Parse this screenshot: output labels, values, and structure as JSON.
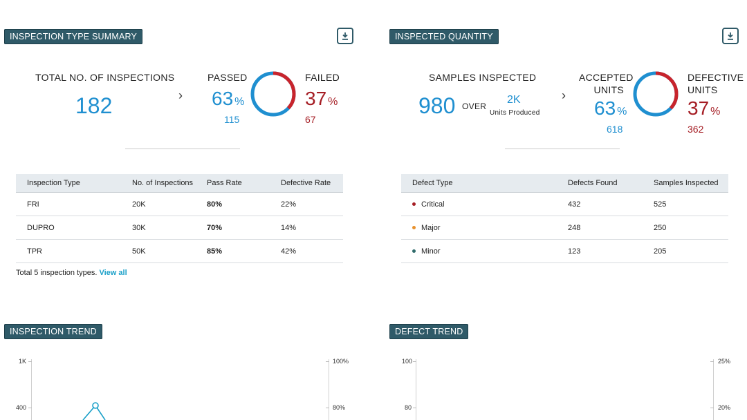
{
  "inspection_summary": {
    "title": "INSPECTION TYPE SUMMARY",
    "total_label": "TOTAL NO. OF INSPECTIONS",
    "total_value": "182",
    "passed_label": "PASSED",
    "passed_pct": "63",
    "passed_count": "115",
    "failed_label": "FAILED",
    "failed_pct": "37",
    "failed_count": "67",
    "pass_fraction": 0.63,
    "table": {
      "headers": [
        "Inspection Type",
        "No. of Inspections",
        "Pass Rate",
        "Defective Rate"
      ],
      "rows": [
        {
          "type": "FRI",
          "count": "20K",
          "pass": "80%",
          "defect": "22%"
        },
        {
          "type": "DUPRO",
          "count": "30K",
          "pass": "70%",
          "defect": "14%"
        },
        {
          "type": "TPR",
          "count": "50K",
          "pass": "85%",
          "defect": "42%"
        }
      ]
    },
    "footer_text": "Total 5 inspection types.",
    "footer_link": "View all"
  },
  "inspected_quantity": {
    "title": "INSPECTED QUANTITY",
    "samples_label": "SAMPLES INSPECTED",
    "samples_value": "980",
    "over_label": "OVER",
    "produced_value": "2K",
    "produced_label": "Units Produced",
    "accepted_label_1": "ACCEPTED",
    "accepted_label_2": "UNITS",
    "accepted_pct": "63",
    "accepted_count": "618",
    "defective_label_1": "DEFECTIVE",
    "defective_label_2": "UNITS",
    "defective_pct": "37",
    "defective_count": "362",
    "accept_fraction": 0.63,
    "table": {
      "headers": [
        "Defect Type",
        "Defects Found",
        "Samples Inspected"
      ],
      "rows": [
        {
          "type": "Critical",
          "found": "432",
          "samples": "525",
          "dot": "#a51d24"
        },
        {
          "type": "Major",
          "found": "248",
          "samples": "250",
          "dot": "#e8912d"
        },
        {
          "type": "Minor",
          "found": "123",
          "samples": "205",
          "dot": "#2f6b6b"
        }
      ]
    }
  },
  "inspection_trend": {
    "title": "INSPECTION TREND",
    "left_ticks": [
      "1K",
      "400"
    ],
    "right_ticks": [
      "100%",
      "80%"
    ]
  },
  "defect_trend": {
    "title": "DEFECT TREND",
    "left_ticks": [
      "100",
      "80"
    ],
    "right_ticks": [
      "25%",
      "20%"
    ]
  },
  "pct_symbol": "%",
  "colors": {
    "blue": "#1f8fd0",
    "red": "#c8242c",
    "label_bg": "#2f5a68"
  }
}
